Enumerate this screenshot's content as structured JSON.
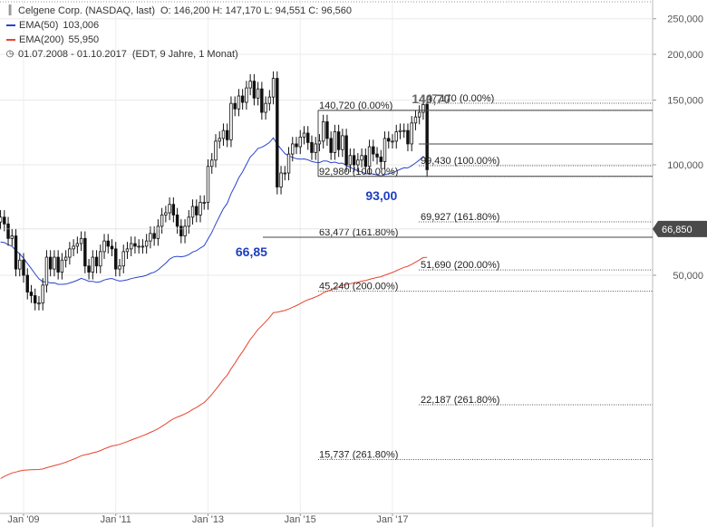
{
  "legend": {
    "title": "Celgene Corp. (NASDAQ, last)",
    "ohlc": "O: 146,200  H: 147,170  L: 94,551  C: 96,560",
    "ema50_label": "EMA(50)",
    "ema50_value": "103,006",
    "ema200_label": "EMA(200)",
    "ema200_value": "55,950",
    "range": "01.07.2008 - 01.10.2017",
    "range_note": "(EDT, 9 Jahre, 1 Monat)"
  },
  "colors": {
    "ema50": "#2a44cc",
    "ema200": "#e8432e",
    "candle": "#111111",
    "annotation_blue": "#1e3fbf",
    "annotation_gray": "#666666",
    "price_tag": "#4a4a4a"
  },
  "chart_data": {
    "type": "candlestick",
    "title": "Celgene Corp. (NASDAQ, last)",
    "scale": "log",
    "x_range": [
      "2008-07",
      "2017-10"
    ],
    "y_ticks": [
      {
        "value": 50,
        "label": "50,000"
      },
      {
        "value": 100,
        "label": "100,000"
      },
      {
        "value": 150,
        "label": "150,000"
      },
      {
        "value": 200,
        "label": "200,000"
      },
      {
        "value": 250,
        "label": "250,000"
      }
    ],
    "x_ticks": [
      {
        "date": "2009-01",
        "label": "Jan '09"
      },
      {
        "date": "2011-01",
        "label": "Jan '11"
      },
      {
        "date": "2013-01",
        "label": "Jan '13"
      },
      {
        "date": "2015-01",
        "label": "Jan '15"
      },
      {
        "date": "2017-01",
        "label": "Jan '17"
      }
    ],
    "monthly_close": [
      [
        "2008-07",
        72
      ],
      [
        "2008-08",
        69
      ],
      [
        "2008-09",
        63
      ],
      [
        "2008-10",
        64
      ],
      [
        "2008-11",
        52
      ],
      [
        "2008-12",
        55
      ],
      [
        "2009-01",
        50
      ],
      [
        "2009-02",
        45
      ],
      [
        "2009-03",
        44
      ],
      [
        "2009-04",
        42
      ],
      [
        "2009-05",
        42
      ],
      [
        "2009-06",
        47
      ],
      [
        "2009-07",
        56
      ],
      [
        "2009-08",
        52
      ],
      [
        "2009-09",
        56
      ],
      [
        "2009-10",
        51
      ],
      [
        "2009-11",
        55
      ],
      [
        "2009-12",
        56
      ],
      [
        "2010-01",
        59
      ],
      [
        "2010-02",
        60
      ],
      [
        "2010-03",
        61
      ],
      [
        "2010-04",
        63
      ],
      [
        "2010-05",
        53
      ],
      [
        "2010-06",
        51
      ],
      [
        "2010-07",
        56
      ],
      [
        "2010-08",
        53
      ],
      [
        "2010-09",
        58
      ],
      [
        "2010-10",
        62
      ],
      [
        "2010-11",
        60
      ],
      [
        "2010-12",
        59
      ],
      [
        "2011-01",
        52
      ],
      [
        "2011-02",
        53
      ],
      [
        "2011-03",
        58
      ],
      [
        "2011-04",
        59
      ],
      [
        "2011-05",
        61
      ],
      [
        "2011-06",
        60
      ],
      [
        "2011-07",
        60
      ],
      [
        "2011-08",
        60
      ],
      [
        "2011-09",
        62
      ],
      [
        "2011-10",
        65
      ],
      [
        "2011-11",
        63
      ],
      [
        "2011-12",
        68
      ],
      [
        "2012-01",
        73
      ],
      [
        "2012-02",
        74
      ],
      [
        "2012-03",
        78
      ],
      [
        "2012-04",
        73
      ],
      [
        "2012-05",
        68
      ],
      [
        "2012-06",
        64
      ],
      [
        "2012-07",
        68
      ],
      [
        "2012-08",
        72
      ],
      [
        "2012-09",
        77
      ],
      [
        "2012-10",
        73
      ],
      [
        "2012-11",
        79
      ],
      [
        "2012-12",
        79
      ],
      [
        "2013-01",
        99
      ],
      [
        "2013-02",
        103
      ],
      [
        "2013-03",
        116
      ],
      [
        "2013-04",
        118
      ],
      [
        "2013-05",
        124
      ],
      [
        "2013-06",
        117
      ],
      [
        "2013-07",
        147
      ],
      [
        "2013-08",
        142
      ],
      [
        "2013-09",
        154
      ],
      [
        "2013-10",
        148
      ],
      [
        "2013-11",
        162
      ],
      [
        "2013-12",
        169
      ],
      [
        "2014-01",
        152
      ],
      [
        "2014-02",
        161
      ],
      [
        "2014-03",
        139
      ],
      [
        "2014-04",
        147
      ],
      [
        "2014-05",
        153
      ],
      [
        "2014-06",
        172
      ],
      [
        "2014-07",
        87
      ],
      [
        "2014-08",
        95
      ],
      [
        "2014-09",
        95
      ],
      [
        "2014-10",
        107
      ],
      [
        "2014-11",
        114
      ],
      [
        "2014-12",
        112
      ],
      [
        "2015-01",
        119
      ],
      [
        "2015-02",
        122
      ],
      [
        "2015-03",
        115
      ],
      [
        "2015-04",
        108
      ],
      [
        "2015-05",
        114
      ],
      [
        "2015-06",
        116
      ],
      [
        "2015-07",
        131
      ],
      [
        "2015-08",
        118
      ],
      [
        "2015-09",
        108
      ],
      [
        "2015-10",
        123
      ],
      [
        "2015-11",
        110
      ],
      [
        "2015-12",
        120
      ],
      [
        "2016-01",
        100
      ],
      [
        "2016-02",
        106
      ],
      [
        "2016-03",
        100
      ],
      [
        "2016-04",
        103
      ],
      [
        "2016-05",
        106
      ],
      [
        "2016-06",
        99
      ],
      [
        "2016-07",
        112
      ],
      [
        "2016-08",
        107
      ],
      [
        "2016-09",
        105
      ],
      [
        "2016-10",
        102
      ],
      [
        "2016-11",
        118
      ],
      [
        "2016-12",
        116
      ],
      [
        "2017-01",
        116
      ],
      [
        "2017-02",
        123
      ],
      [
        "2017-03",
        124
      ],
      [
        "2017-04",
        124
      ],
      [
        "2017-05",
        114
      ],
      [
        "2017-06",
        130
      ],
      [
        "2017-07",
        135
      ],
      [
        "2017-08",
        139
      ],
      [
        "2017-09",
        146
      ],
      [
        "2017-10",
        97
      ]
    ],
    "ema50_last": 103.006,
    "ema200_last": 55.95,
    "current_price": {
      "value": 66.85,
      "label": "66,850"
    }
  },
  "fib_left": [
    {
      "value": 140.72,
      "label": "140,720 (0.00%)"
    },
    {
      "value": 92.98,
      "label": "92,980 (100.00%)"
    },
    {
      "value": 63.477,
      "label": "63,477 (161.80%)"
    },
    {
      "value": 45.24,
      "label": "45,240 (200.00%)"
    },
    {
      "value": 15.737,
      "label": "15,737 (261.80%)"
    }
  ],
  "fib_right": [
    {
      "value": 147.17,
      "label": "147,170 (0.00%)"
    },
    {
      "value": 99.43,
      "label": "99,430 (100.00%)"
    },
    {
      "value": 69.927,
      "label": "69,927 (161.80%)"
    },
    {
      "value": 51.69,
      "label": "51,690 (200.00%)"
    },
    {
      "value": 22.187,
      "label": "22,187 (261.80%)"
    }
  ],
  "annotations": [
    {
      "text": "140,70",
      "value": 140.7,
      "date": "2017-06",
      "color": "gray"
    },
    {
      "text": "93,00",
      "value": 93.0,
      "date": "2016-06",
      "color": "blue"
    },
    {
      "text": "66,85",
      "value": 66.85,
      "date": "2013-11",
      "color": "blue"
    }
  ]
}
